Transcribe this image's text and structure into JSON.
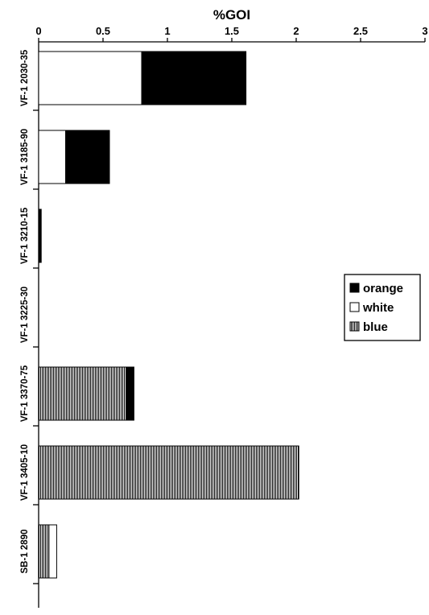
{
  "chart_data": {
    "type": "bar",
    "orientation": "horizontal",
    "stacked": true,
    "title": "%GOI",
    "xlim": [
      0,
      3
    ],
    "x_ticks": [
      0,
      0.5,
      1,
      1.5,
      2,
      2.5,
      3
    ],
    "x_tick_labels": [
      "0",
      "0.5",
      "1",
      "1.5",
      "2",
      "2.5",
      "3"
    ],
    "categories": [
      "VF-1 2030-35",
      "VF-1 3185-90",
      "VF-1 3210-15",
      "VF-1 3225-30",
      "VF-1 3370-75",
      "VF-1 3405-10",
      "SB-1 2890"
    ],
    "series": [
      {
        "name": "blue",
        "pattern": "vertical-hatch",
        "values": [
          0,
          0,
          0,
          0,
          0.68,
          2.02,
          0.08
        ]
      },
      {
        "name": "white",
        "pattern": "none",
        "values": [
          0.8,
          0.21,
          0,
          0,
          0,
          0,
          0.06
        ]
      },
      {
        "name": "orange",
        "pattern": "solid",
        "values": [
          0.81,
          0.34,
          0.02,
          0,
          0.06,
          0,
          0
        ]
      }
    ],
    "legend": {
      "placement": "right",
      "order": [
        "orange",
        "white",
        "blue"
      ]
    },
    "grid": false
  }
}
